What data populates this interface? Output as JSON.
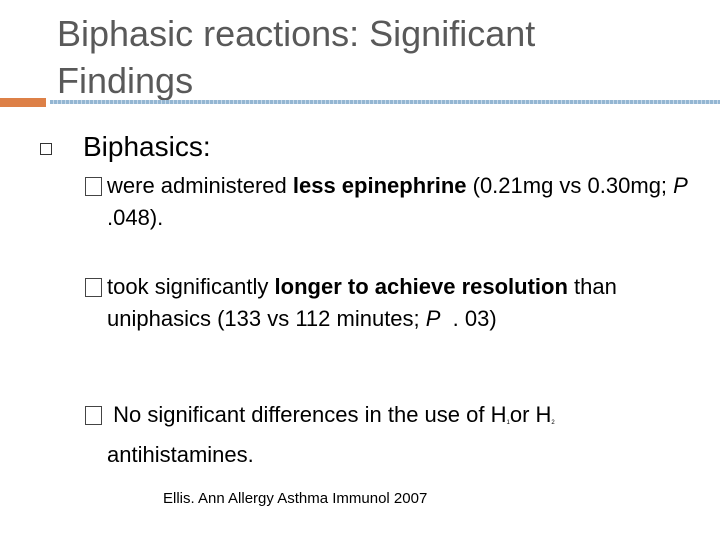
{
  "slide": {
    "title": [
      "Biphasic reactions: Significant",
      "Findings"
    ],
    "bullet": "Biphasics:",
    "sub_bullets": [
      [
        {
          "text": "were administered "
        },
        {
          "text": "less epinephrine",
          "style": "bold"
        },
        {
          "text": " (0.21mg vs 0.30mg; "
        },
        {
          "text": "P",
          "style": "italic"
        },
        {
          "text": " .048)."
        }
      ],
      [
        {
          "text": "took significantly "
        },
        {
          "text": "longer to achieve resolution",
          "style": "bold"
        },
        {
          "text": " than uniphasics (133 vs 112 minutes; "
        },
        {
          "text": "P",
          "style": "italic"
        },
        {
          "text": "  . 03)"
        }
      ],
      [
        {
          "text": " No significant differences in the use of H"
        },
        {
          "text": "1",
          "style": "sub"
        },
        {
          "text": "or H"
        },
        {
          "text": "2",
          "style": "sub"
        },
        {
          "text": " antihistamines."
        }
      ]
    ],
    "citation": "Ellis. Ann Allergy Asthma Immunol 2007"
  }
}
